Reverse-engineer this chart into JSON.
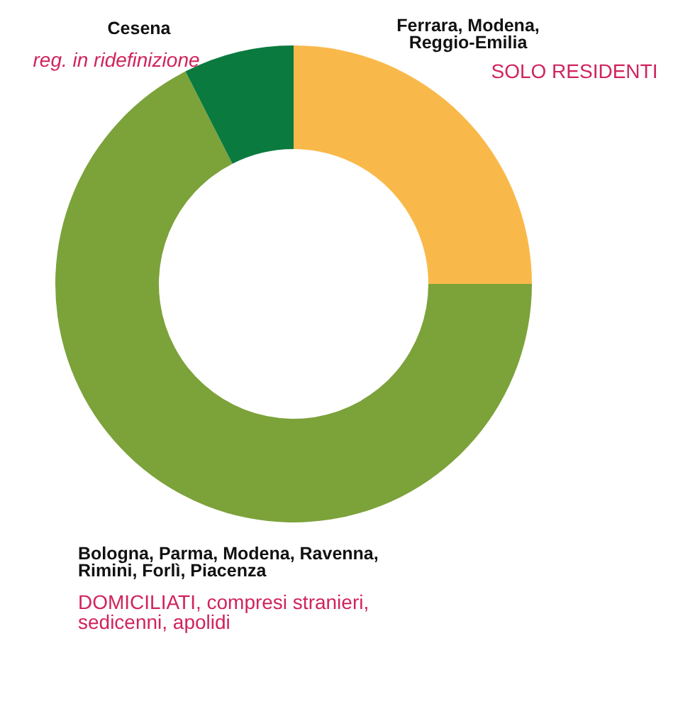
{
  "chart_data": {
    "type": "donut",
    "categories": [
      "Ferrara, Modena, Reggio-Emilia",
      "Bologna, Parma, Modena, Ravenna, Rimini, Forlì, Piacenza",
      "Cesena"
    ],
    "values": [
      25,
      67.5,
      7.5
    ],
    "colors": [
      "#f9b94a",
      "#7ca23a",
      "#0a7a3f"
    ],
    "annotations": [
      "SOLO RESIDENTI",
      "DOMICILIATI, compresi stranieri, sedicenni, apolidi",
      "reg. in ridefinizione"
    ]
  }
}
